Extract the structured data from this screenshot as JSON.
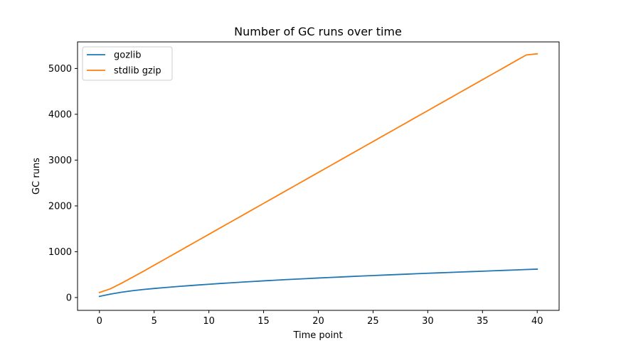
{
  "chart_data": {
    "type": "line",
    "title": "Number of GC runs over time",
    "xlabel": "Time point",
    "ylabel": "GC runs",
    "xlim": [
      -2,
      42
    ],
    "ylim": [
      -280,
      5580
    ],
    "xticks": [
      0,
      5,
      10,
      15,
      20,
      25,
      30,
      35,
      40
    ],
    "yticks": [
      0,
      1000,
      2000,
      3000,
      4000,
      5000
    ],
    "grid": false,
    "legend": "top-left",
    "series": [
      {
        "name": "gozlib",
        "color": "#1f77b4",
        "x": [
          0,
          1,
          2,
          3,
          4,
          5,
          6,
          7,
          8,
          9,
          10,
          11,
          12,
          13,
          14,
          15,
          16,
          17,
          18,
          19,
          20,
          21,
          22,
          23,
          24,
          25,
          26,
          27,
          28,
          29,
          30,
          31,
          32,
          33,
          34,
          35,
          36,
          37,
          38,
          39,
          40
        ],
        "values": [
          25,
          75,
          115,
          148,
          175,
          198,
          218,
          238,
          256,
          273,
          290,
          306,
          321,
          336,
          350,
          364,
          377,
          390,
          402,
          414,
          426,
          437,
          448,
          459,
          470,
          480,
          490,
          500,
          510,
          520,
          530,
          539,
          548,
          557,
          566,
          575,
          584,
          593,
          602,
          611,
          620
        ]
      },
      {
        "name": "stdlib gzip",
        "color": "#ff7f0e",
        "x": [
          0,
          1,
          2,
          3,
          4,
          5,
          6,
          7,
          8,
          9,
          10,
          11,
          12,
          13,
          14,
          15,
          16,
          17,
          18,
          19,
          20,
          21,
          22,
          23,
          24,
          25,
          26,
          27,
          28,
          29,
          30,
          31,
          32,
          33,
          34,
          35,
          36,
          37,
          38,
          39,
          40
        ],
        "values": [
          110,
          190,
          310,
          440,
          570,
          705,
          840,
          975,
          1110,
          1245,
          1380,
          1515,
          1650,
          1785,
          1920,
          2055,
          2190,
          2325,
          2460,
          2595,
          2730,
          2865,
          3000,
          3135,
          3270,
          3405,
          3540,
          3675,
          3810,
          3945,
          4080,
          4215,
          4350,
          4485,
          4620,
          4755,
          4890,
          5025,
          5160,
          5295,
          5320
        ]
      }
    ]
  }
}
